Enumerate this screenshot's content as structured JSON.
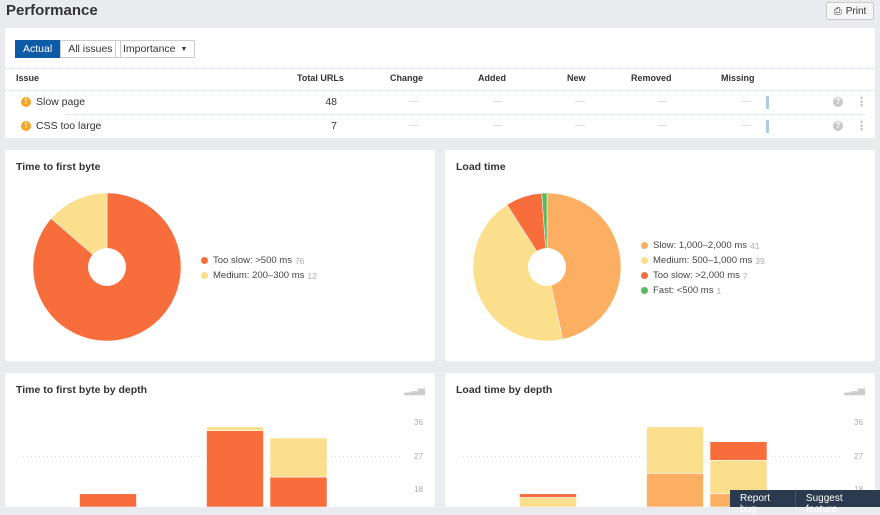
{
  "page": {
    "title": "Performance",
    "print_label": "Print"
  },
  "filters": {
    "tabs": [
      "Actual",
      "All issues"
    ],
    "importance_label": "Importance"
  },
  "table": {
    "headers": {
      "issue": "Issue",
      "total": "Total URLs",
      "change": "Change",
      "added": "Added",
      "new": "New",
      "removed": "Removed",
      "missing": "Missing"
    },
    "rows": [
      {
        "issue": "Slow page",
        "total": "48",
        "change": "—",
        "added": "—",
        "new": "—",
        "removed": "—",
        "missing": "—"
      },
      {
        "issue": "CSS too large",
        "total": "7",
        "change": "—",
        "added": "—",
        "new": "—",
        "removed": "—",
        "missing": "—"
      }
    ]
  },
  "chart_data": [
    {
      "type": "pie",
      "title": "Time to first byte",
      "donut": true,
      "slices": [
        {
          "label": "Too slow: >500 ms",
          "value": 76,
          "color": "#f76d3c"
        },
        {
          "label": "Medium: 200–300 ms",
          "value": 12,
          "color": "#fbdf8d"
        }
      ]
    },
    {
      "type": "pie",
      "title": "Load time",
      "donut": true,
      "slices": [
        {
          "label": "Slow: 1,000–2,000 ms",
          "value": 41,
          "color": "#fcae62"
        },
        {
          "label": "Medium: 500–1,000 ms",
          "value": 39,
          "color": "#fbdf8d"
        },
        {
          "label": "Too slow: >2,000 ms",
          "value": 7,
          "color": "#f76d3c"
        },
        {
          "label": "Fast: <500 ms",
          "value": 1,
          "color": "#5cb85c"
        }
      ]
    },
    {
      "type": "bar",
      "stacked": true,
      "title": "Time to first byte by depth",
      "yticks": [
        36,
        27,
        18
      ],
      "series": [
        {
          "name": "Too slow",
          "color": "#f76d3c",
          "values": [
            0,
            17,
            0,
            34,
            21.5
          ]
        },
        {
          "name": "Medium",
          "color": "#fbdf8d",
          "values": [
            0,
            0,
            0,
            1,
            10.5
          ]
        }
      ]
    },
    {
      "type": "bar",
      "stacked": true,
      "title": "Load time by depth",
      "yticks": [
        36,
        27,
        18
      ],
      "series": [
        {
          "name": "Slow",
          "color": "#fcae62",
          "values": [
            0,
            0,
            0,
            22.5,
            17
          ]
        },
        {
          "name": "Medium",
          "color": "#fbdf8d",
          "values": [
            0,
            16,
            0,
            12.5,
            9
          ]
        },
        {
          "name": "Too slow",
          "color": "#f76d3c",
          "values": [
            0,
            1,
            0,
            0,
            5
          ]
        }
      ]
    }
  ],
  "feedback": {
    "report": "Report bug",
    "suggest": "Suggest feature"
  }
}
